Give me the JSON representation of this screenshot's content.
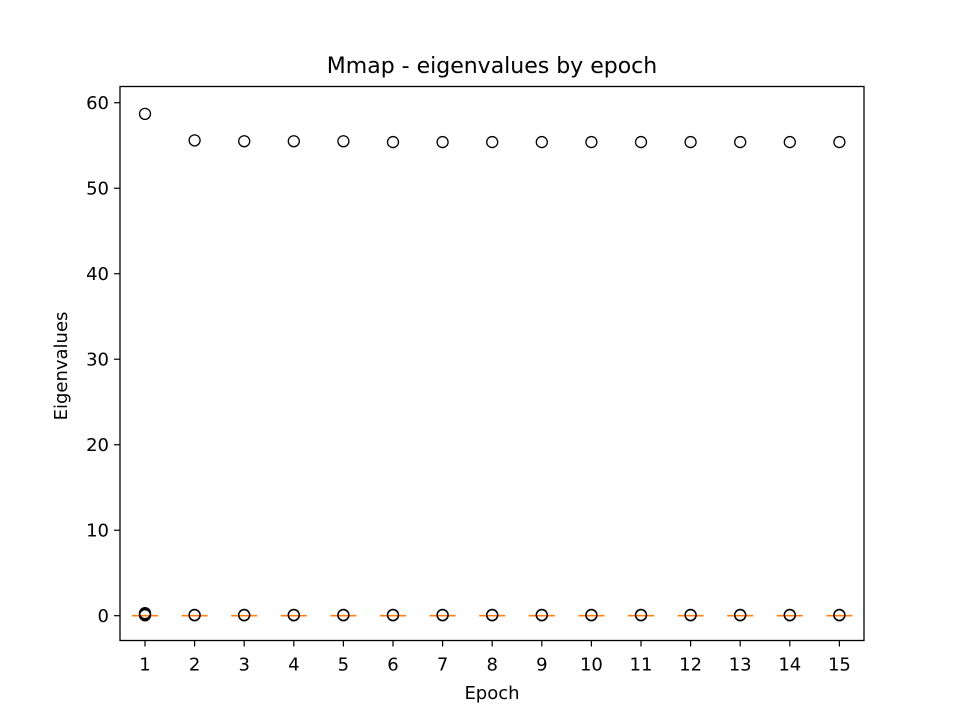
{
  "chart_data": {
    "type": "box",
    "title": "Mmap - eigenvalues by epoch",
    "xlabel": "Epoch",
    "ylabel": "Eigenvalues",
    "categories": [
      "1",
      "2",
      "3",
      "4",
      "5",
      "6",
      "7",
      "8",
      "9",
      "10",
      "11",
      "12",
      "13",
      "14",
      "15"
    ],
    "yticks": [
      0,
      10,
      20,
      30,
      40,
      50,
      60
    ],
    "ylim": [
      -2.9,
      61.9
    ],
    "median_color": "#ff7f0e",
    "marker_color": "#000000",
    "medians": [
      0,
      0,
      0,
      0,
      0,
      0,
      0,
      0,
      0,
      0,
      0,
      0,
      0,
      0,
      0
    ],
    "outliers": [
      [
        58.7,
        0.3,
        0.2,
        0.1,
        0.05
      ],
      [
        55.6,
        0.1,
        0.05
      ],
      [
        55.5,
        0.1,
        0.05
      ],
      [
        55.5,
        0.1,
        0.05
      ],
      [
        55.5,
        0.1,
        0.05
      ],
      [
        55.4,
        0.1,
        0.05
      ],
      [
        55.4,
        0.1,
        0.05
      ],
      [
        55.4,
        0.1,
        0.05
      ],
      [
        55.4,
        0.1,
        0.05
      ],
      [
        55.4,
        0.1,
        0.05
      ],
      [
        55.4,
        0.1,
        0.05
      ],
      [
        55.4,
        0.1,
        0.05
      ],
      [
        55.4,
        0.1,
        0.05
      ],
      [
        55.4,
        0.1,
        0.05
      ],
      [
        55.4,
        0.1,
        0.05
      ]
    ],
    "grid": false,
    "legend": "none"
  }
}
